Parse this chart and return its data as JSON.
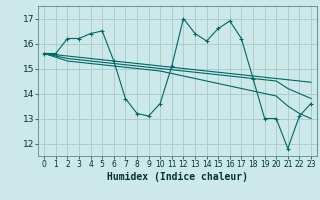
{
  "title": "",
  "xlabel": "Humidex (Indice chaleur)",
  "background_color": "#cce8e8",
  "grid_color": "#aacece",
  "line_color": "#006666",
  "xlim": [
    -0.5,
    23.5
  ],
  "ylim": [
    11.5,
    17.5
  ],
  "yticks": [
    12,
    13,
    14,
    15,
    16,
    17
  ],
  "xticks": [
    0,
    1,
    2,
    3,
    4,
    5,
    6,
    7,
    8,
    9,
    10,
    11,
    12,
    13,
    14,
    15,
    16,
    17,
    18,
    19,
    20,
    21,
    22,
    23
  ],
  "series_zigzag": [
    15.6,
    15.6,
    16.2,
    16.2,
    16.4,
    16.5,
    15.3,
    13.8,
    13.2,
    13.1,
    13.6,
    15.1,
    17.0,
    16.4,
    16.1,
    16.6,
    16.9,
    16.2,
    14.6,
    13.0,
    13.0,
    11.8,
    13.1,
    13.6
  ],
  "series_lines": [
    [
      15.6,
      15.55,
      15.5,
      15.45,
      15.4,
      15.35,
      15.3,
      15.25,
      15.2,
      15.15,
      15.1,
      15.05,
      15.0,
      14.95,
      14.9,
      14.85,
      14.8,
      14.75,
      14.7,
      14.65,
      14.6,
      14.55,
      14.5,
      14.45
    ],
    [
      15.6,
      15.5,
      15.4,
      15.35,
      15.3,
      15.25,
      15.2,
      15.15,
      15.1,
      15.05,
      15.0,
      14.95,
      14.9,
      14.85,
      14.8,
      14.75,
      14.7,
      14.65,
      14.6,
      14.55,
      14.5,
      14.2,
      14.0,
      13.8
    ],
    [
      15.6,
      15.45,
      15.3,
      15.25,
      15.2,
      15.15,
      15.1,
      15.05,
      15.0,
      14.95,
      14.9,
      14.8,
      14.7,
      14.6,
      14.5,
      14.4,
      14.3,
      14.2,
      14.1,
      14.0,
      13.9,
      13.5,
      13.2,
      13.0
    ]
  ],
  "xlabel_fontsize": 7,
  "tick_fontsize": 5.5,
  "ytick_fontsize": 6.5
}
